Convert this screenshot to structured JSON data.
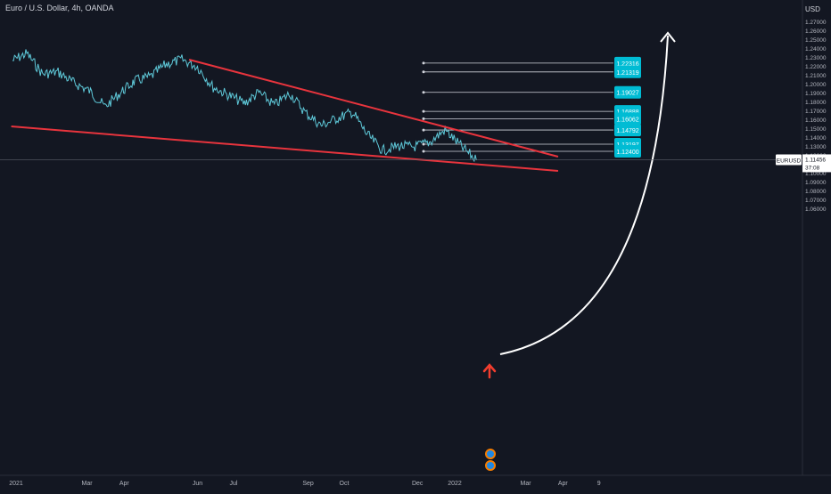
{
  "header": {
    "title": "Euro / U.S. Dollar, 4h, OANDA",
    "currency": "USD"
  },
  "price_axis": {
    "ticks": [
      "1.27000",
      "1.26000",
      "1.25000",
      "1.24000",
      "1.23000",
      "1.22000",
      "1.21000",
      "1.20000",
      "1.19000",
      "1.18000",
      "1.17000",
      "1.16000",
      "1.15000",
      "1.14000",
      "1.13000",
      "1.12000",
      "1.11000",
      "1.10000",
      "1.09000",
      "1.08000",
      "1.07000",
      "1.06000"
    ]
  },
  "time_axis": {
    "labels": [
      "2021",
      "Mar",
      "Apr",
      "Jun",
      "Jul",
      "Sep",
      "Oct",
      "Dec",
      "2022",
      "Mar",
      "Apr",
      "9"
    ]
  },
  "levels": [
    "1.22316",
    "1.21319",
    "1.19027",
    "1.16888",
    "1.16062",
    "1.14792",
    "1.13197",
    "1.12400"
  ],
  "last_price": {
    "symbol": "EURUSD",
    "value": "1.11456",
    "countdown": "37:08"
  },
  "colors": {
    "background": "#131722",
    "price_line": "#5ec8d8",
    "trendline": "#e8343d",
    "label_bg": "#00bcd4",
    "arrow_up": "#ffffff",
    "marker": "#f23d2e"
  },
  "chart_data": {
    "type": "line",
    "symbol": "EURUSD",
    "timeframe": "4h",
    "ylim": [
      1.06,
      1.27
    ],
    "x": [
      "2021-01",
      "2021-01",
      "2021-02",
      "2021-02",
      "2021-03",
      "2021-03",
      "2021-04",
      "2021-04",
      "2021-05",
      "2021-05",
      "2021-06",
      "2021-06",
      "2021-06",
      "2021-07",
      "2021-07",
      "2021-08",
      "2021-08",
      "2021-09",
      "2021-09",
      "2021-10",
      "2021-10",
      "2021-10",
      "2021-11",
      "2021-11",
      "2021-11",
      "2021-12",
      "2021-12",
      "2022-01",
      "2022-01",
      "2022-01",
      "2022-01"
    ],
    "y": [
      1.226,
      1.234,
      1.211,
      1.213,
      1.201,
      1.192,
      1.174,
      1.19,
      1.203,
      1.208,
      1.222,
      1.227,
      1.219,
      1.196,
      1.187,
      1.178,
      1.19,
      1.176,
      1.189,
      1.167,
      1.153,
      1.161,
      1.168,
      1.143,
      1.125,
      1.13,
      1.129,
      1.134,
      1.148,
      1.13,
      1.114
    ],
    "horizontal_levels": [
      1.22316,
      1.21319,
      1.19027,
      1.16888,
      1.16062,
      1.14792,
      1.13197,
      1.124
    ],
    "last_price": 1.11456,
    "trendlines": [
      {
        "from": [
          "2021-05-25",
          1.227
        ],
        "to": [
          "2022-03-28",
          1.118
        ]
      },
      {
        "from": [
          "2020-12-28",
          1.152
        ],
        "to": [
          "2022-03-28",
          1.102
        ]
      }
    ],
    "grid": false
  }
}
